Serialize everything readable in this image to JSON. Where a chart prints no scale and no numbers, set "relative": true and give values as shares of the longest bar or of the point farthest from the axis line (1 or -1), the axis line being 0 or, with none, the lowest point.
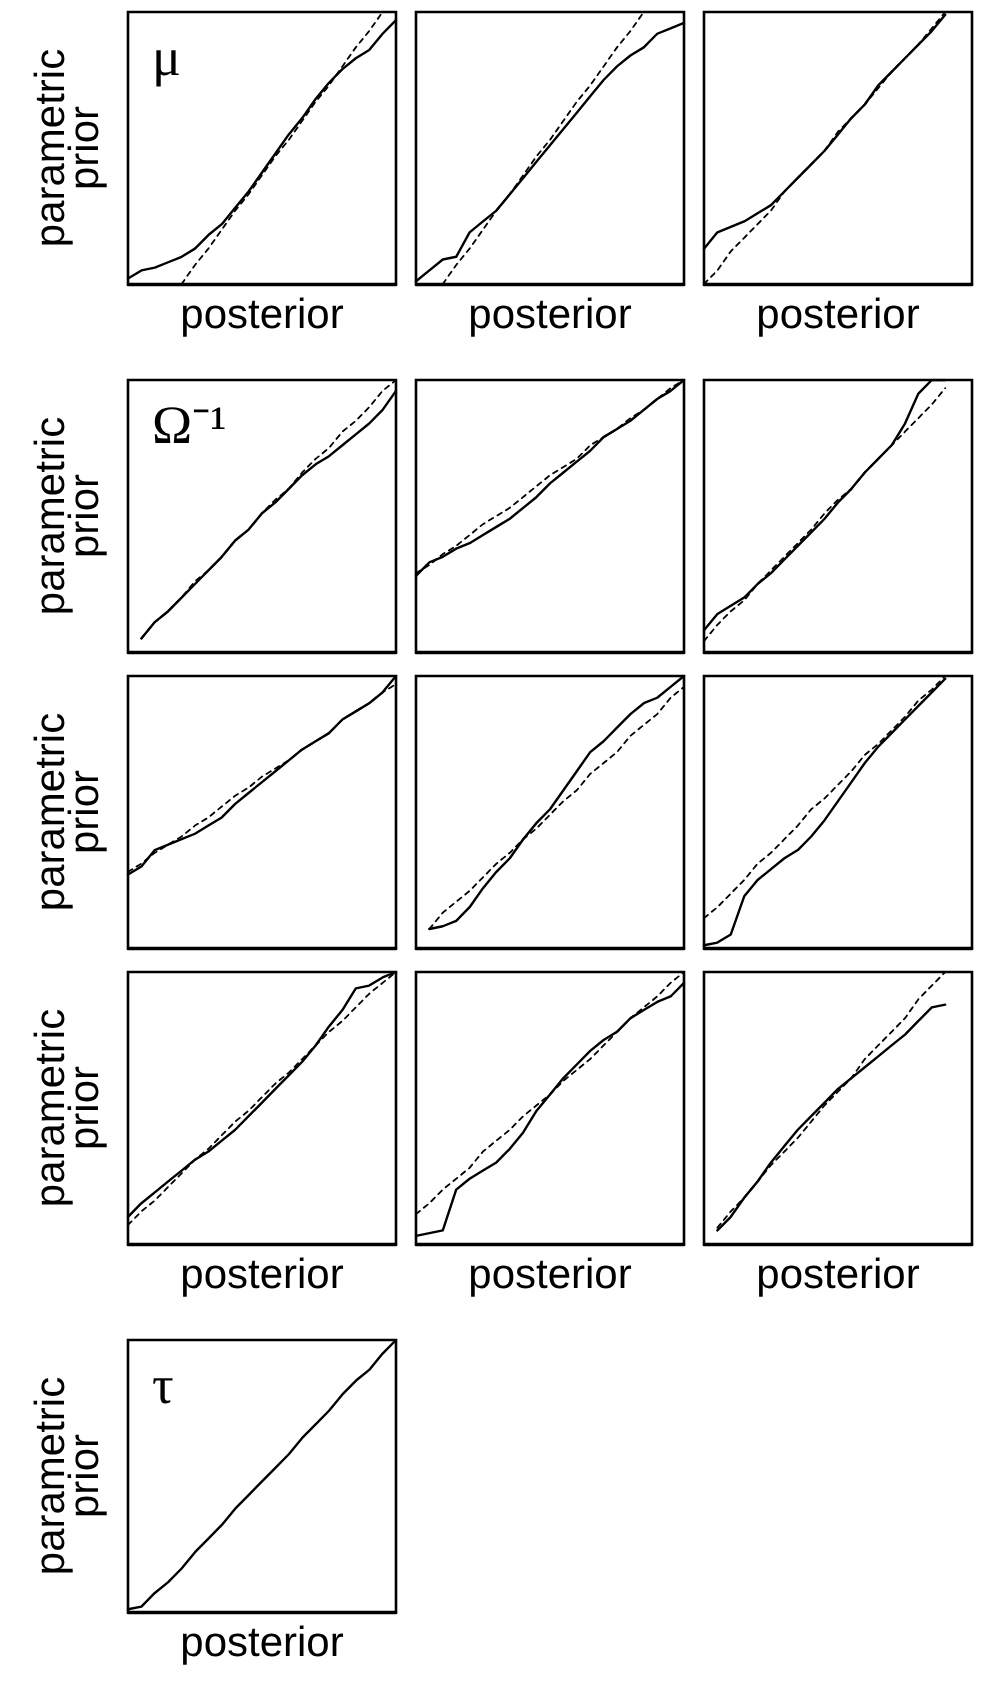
{
  "chart_data": [
    {
      "type": "line",
      "relative": true,
      "title": "μ",
      "xlabel": "posterior",
      "ylabel": "parametric prior",
      "tick_labels": false,
      "categories": [
        null,
        null,
        null,
        null,
        null,
        null,
        null,
        null,
        null,
        null,
        null,
        null,
        null,
        null,
        null,
        null,
        null,
        null,
        null,
        null,
        null
      ],
      "series": [
        {
          "color": "#000000",
          "line_style": "solid",
          "values": [
            0.02,
            0.05,
            0.06,
            0.08,
            0.1,
            0.13,
            0.18,
            0.22,
            0.28,
            0.34,
            0.41,
            0.48,
            0.55,
            0.61,
            0.68,
            0.74,
            0.79,
            0.83,
            0.86,
            0.92,
            0.97
          ]
        },
        {
          "color": "#000000",
          "line_style": "dashed",
          "values": [
            null,
            null,
            null,
            null,
            0,
            0.07,
            0.13,
            0.2,
            0.27,
            0.33,
            0.4,
            0.47,
            0.53,
            0.6,
            0.67,
            0.73,
            0.8,
            0.87,
            0.93,
            1,
            null
          ]
        }
      ]
    },
    {
      "type": "line",
      "relative": true,
      "xlabel": "posterior",
      "tick_labels": false,
      "categories": [
        null,
        null,
        null,
        null,
        null,
        null,
        null,
        null,
        null,
        null,
        null,
        null,
        null,
        null,
        null,
        null,
        null,
        null,
        null,
        null,
        null
      ],
      "series": [
        {
          "color": "#000000",
          "line_style": "solid",
          "values": [
            0.01,
            0.05,
            0.09,
            0.1,
            0.19,
            0.23,
            0.27,
            0.33,
            0.39,
            0.45,
            0.51,
            0.57,
            0.63,
            0.69,
            0.75,
            0.8,
            0.84,
            0.87,
            0.92,
            0.94,
            0.96
          ]
        },
        {
          "color": "#000000",
          "line_style": "dashed",
          "values": [
            null,
            null,
            0,
            0.07,
            0.13,
            0.2,
            0.27,
            0.33,
            0.4,
            0.47,
            0.53,
            0.6,
            0.67,
            0.73,
            0.8,
            0.87,
            0.93,
            1,
            null,
            null,
            null
          ]
        }
      ]
    },
    {
      "type": "line",
      "relative": true,
      "xlabel": "posterior",
      "tick_labels": false,
      "categories": [
        null,
        null,
        null,
        null,
        null,
        null,
        null,
        null,
        null,
        null,
        null,
        null,
        null,
        null,
        null,
        null,
        null,
        null,
        null,
        null,
        null
      ],
      "series": [
        {
          "color": "#000000",
          "line_style": "solid",
          "values": [
            0.13,
            0.19,
            0.21,
            0.23,
            0.26,
            0.29,
            0.34,
            0.39,
            0.44,
            0.49,
            0.55,
            0.61,
            0.66,
            0.73,
            0.78,
            0.83,
            0.88,
            0.93,
            0.99,
            null,
            null
          ]
        },
        {
          "color": "#000000",
          "line_style": "dashed",
          "values": [
            0,
            0.05,
            0.12,
            0.17,
            0.22,
            0.27,
            0.34,
            0.39,
            0.44,
            0.49,
            0.56,
            0.61,
            0.66,
            0.72,
            0.78,
            0.83,
            0.88,
            0.94,
            1,
            null,
            null
          ]
        }
      ]
    },
    {
      "type": "line",
      "relative": true,
      "title": "Ω⁻¹",
      "ylabel": "parametric prior",
      "tick_labels": false,
      "categories": [
        null,
        null,
        null,
        null,
        null,
        null,
        null,
        null,
        null,
        null,
        null,
        null,
        null,
        null,
        null,
        null,
        null,
        null,
        null,
        null,
        null
      ],
      "series": [
        {
          "color": "#000000",
          "line_style": "solid",
          "values": [
            null,
            0.05,
            0.11,
            0.15,
            0.2,
            0.25,
            0.3,
            0.35,
            0.41,
            0.45,
            0.51,
            0.55,
            0.6,
            0.65,
            0.69,
            0.72,
            0.76,
            0.8,
            0.84,
            0.89,
            0.96
          ]
        },
        {
          "color": "#000000",
          "line_style": "dashed",
          "values": [
            null,
            0.05,
            0.11,
            0.15,
            0.2,
            0.26,
            0.3,
            0.35,
            0.41,
            0.45,
            0.51,
            0.56,
            0.6,
            0.66,
            0.71,
            0.75,
            0.81,
            0.85,
            0.9,
            0.96,
            1
          ]
        }
      ]
    },
    {
      "type": "line",
      "relative": true,
      "tick_labels": false,
      "categories": [
        null,
        null,
        null,
        null,
        null,
        null,
        null,
        null,
        null,
        null,
        null,
        null,
        null,
        null,
        null,
        null,
        null,
        null,
        null,
        null,
        null
      ],
      "series": [
        {
          "color": "#000000",
          "line_style": "solid",
          "values": [
            0.28,
            0.33,
            0.35,
            0.38,
            0.4,
            0.43,
            0.46,
            0.49,
            0.53,
            0.57,
            0.62,
            0.66,
            0.7,
            0.74,
            0.79,
            0.82,
            0.85,
            0.89,
            0.93,
            0.96,
            1
          ]
        },
        {
          "color": "#000000",
          "line_style": "dashed",
          "values": [
            0.29,
            0.32,
            0.36,
            0.39,
            0.43,
            0.47,
            0.5,
            0.53,
            0.57,
            0.61,
            0.65,
            0.68,
            0.71,
            0.76,
            0.79,
            0.82,
            0.86,
            0.89,
            0.93,
            0.97,
            1
          ]
        }
      ]
    },
    {
      "type": "line",
      "relative": true,
      "tick_labels": false,
      "categories": [
        null,
        null,
        null,
        null,
        null,
        null,
        null,
        null,
        null,
        null,
        null,
        null,
        null,
        null,
        null,
        null,
        null,
        null,
        null,
        null,
        null
      ],
      "series": [
        {
          "color": "#000000",
          "line_style": "solid",
          "values": [
            0.08,
            0.14,
            0.17,
            0.2,
            0.25,
            0.29,
            0.34,
            0.39,
            0.44,
            0.49,
            0.55,
            0.6,
            0.66,
            0.71,
            0.76,
            0.84,
            0.95,
            1,
            1,
            null,
            null
          ]
        },
        {
          "color": "#000000",
          "line_style": "dashed",
          "values": [
            0.04,
            0.1,
            0.15,
            0.19,
            0.25,
            0.3,
            0.35,
            0.4,
            0.45,
            0.51,
            0.56,
            0.6,
            0.66,
            0.71,
            0.76,
            0.81,
            0.86,
            0.91,
            0.97,
            null,
            null
          ]
        }
      ]
    },
    {
      "type": "line",
      "relative": true,
      "ylabel": "parametric prior",
      "tick_labels": false,
      "categories": [
        null,
        null,
        null,
        null,
        null,
        null,
        null,
        null,
        null,
        null,
        null,
        null,
        null,
        null,
        null,
        null,
        null,
        null,
        null,
        null,
        null
      ],
      "series": [
        {
          "color": "#000000",
          "line_style": "solid",
          "values": [
            0.27,
            0.3,
            0.36,
            0.38,
            0.4,
            0.42,
            0.45,
            0.48,
            0.53,
            0.57,
            0.61,
            0.65,
            0.69,
            0.73,
            0.76,
            0.79,
            0.84,
            0.87,
            0.9,
            0.94,
            1
          ]
        },
        {
          "color": "#000000",
          "line_style": "dashed",
          "values": [
            0.28,
            0.31,
            0.35,
            0.38,
            0.41,
            0.45,
            0.48,
            0.52,
            0.56,
            0.59,
            0.63,
            0.66,
            0.69,
            0.73,
            0.76,
            0.79,
            0.84,
            0.87,
            0.9,
            0.94,
            0.97
          ]
        }
      ]
    },
    {
      "type": "line",
      "relative": true,
      "tick_labels": false,
      "categories": [
        null,
        null,
        null,
        null,
        null,
        null,
        null,
        null,
        null,
        null,
        null,
        null,
        null,
        null,
        null,
        null,
        null,
        null,
        null,
        null,
        null
      ],
      "series": [
        {
          "color": "#000000",
          "line_style": "solid",
          "values": [
            null,
            0.07,
            0.08,
            0.1,
            0.15,
            0.22,
            0.28,
            0.33,
            0.4,
            0.46,
            0.51,
            0.58,
            0.65,
            0.72,
            0.76,
            0.81,
            0.86,
            0.9,
            0.92,
            0.96,
            1
          ]
        },
        {
          "color": "#000000",
          "line_style": "dashed",
          "values": [
            null,
            0.07,
            0.13,
            0.17,
            0.21,
            0.26,
            0.31,
            0.35,
            0.4,
            0.44,
            0.49,
            0.54,
            0.58,
            0.64,
            0.68,
            0.72,
            0.78,
            0.82,
            0.86,
            0.92,
            0.96
          ]
        }
      ]
    },
    {
      "type": "line",
      "relative": true,
      "tick_labels": false,
      "categories": [
        null,
        null,
        null,
        null,
        null,
        null,
        null,
        null,
        null,
        null,
        null,
        null,
        null,
        null,
        null,
        null,
        null,
        null,
        null,
        null,
        null
      ],
      "series": [
        {
          "color": "#000000",
          "line_style": "solid",
          "values": [
            0.01,
            0.02,
            0.05,
            0.19,
            0.25,
            0.29,
            0.33,
            0.36,
            0.41,
            0.47,
            0.54,
            0.61,
            0.68,
            0.74,
            0.79,
            0.84,
            0.89,
            0.94,
            0.99,
            null,
            null
          ]
        },
        {
          "color": "#000000",
          "line_style": "dashed",
          "values": [
            0.11,
            0.15,
            0.2,
            0.25,
            0.31,
            0.35,
            0.4,
            0.45,
            0.51,
            0.55,
            0.6,
            0.65,
            0.71,
            0.75,
            0.8,
            0.85,
            0.91,
            0.95,
            1,
            null,
            null
          ]
        }
      ]
    },
    {
      "type": "line",
      "relative": true,
      "xlabel": "posterior",
      "ylabel": "parametric prior",
      "tick_labels": false,
      "categories": [
        null,
        null,
        null,
        null,
        null,
        null,
        null,
        null,
        null,
        null,
        null,
        null,
        null,
        null,
        null,
        null,
        null,
        null,
        null,
        null,
        null
      ],
      "series": [
        {
          "color": "#000000",
          "line_style": "solid",
          "values": [
            0.1,
            0.15,
            0.19,
            0.23,
            0.27,
            0.31,
            0.34,
            0.38,
            0.42,
            0.47,
            0.52,
            0.57,
            0.62,
            0.67,
            0.73,
            0.8,
            0.86,
            0.94,
            0.95,
            0.98,
            1
          ]
        },
        {
          "color": "#000000",
          "line_style": "dashed",
          "values": [
            0.07,
            0.12,
            0.16,
            0.21,
            0.26,
            0.31,
            0.35,
            0.4,
            0.45,
            0.49,
            0.54,
            0.59,
            0.63,
            0.68,
            0.73,
            0.78,
            0.82,
            0.87,
            0.92,
            0.96,
            1
          ]
        }
      ]
    },
    {
      "type": "line",
      "relative": true,
      "xlabel": "posterior",
      "tick_labels": false,
      "categories": [
        null,
        null,
        null,
        null,
        null,
        null,
        null,
        null,
        null,
        null,
        null,
        null,
        null,
        null,
        null,
        null,
        null,
        null,
        null,
        null,
        null
      ],
      "series": [
        {
          "color": "#000000",
          "line_style": "solid",
          "values": [
            0.03,
            0.04,
            0.05,
            0.2,
            0.24,
            0.27,
            0.3,
            0.35,
            0.41,
            0.49,
            0.55,
            0.61,
            0.66,
            0.71,
            0.75,
            0.78,
            0.83,
            0.86,
            0.89,
            0.91,
            0.96
          ]
        },
        {
          "color": "#000000",
          "line_style": "dashed",
          "values": [
            0.11,
            0.15,
            0.2,
            0.24,
            0.28,
            0.34,
            0.38,
            0.42,
            0.47,
            0.51,
            0.55,
            0.6,
            0.64,
            0.68,
            0.73,
            0.78,
            0.83,
            0.87,
            0.91,
            0.96,
            1
          ]
        }
      ]
    },
    {
      "type": "line",
      "relative": true,
      "xlabel": "posterior",
      "tick_labels": false,
      "categories": [
        null,
        null,
        null,
        null,
        null,
        null,
        null,
        null,
        null,
        null,
        null,
        null,
        null,
        null,
        null,
        null,
        null,
        null,
        null,
        null,
        null
      ],
      "series": [
        {
          "color": "#000000",
          "line_style": "solid",
          "values": [
            null,
            0.05,
            0.1,
            0.17,
            0.23,
            0.3,
            0.36,
            0.42,
            0.47,
            0.52,
            0.57,
            0.61,
            0.65,
            0.69,
            0.73,
            0.77,
            0.82,
            0.87,
            0.88,
            null,
            null
          ]
        },
        {
          "color": "#000000",
          "line_style": "dashed",
          "values": [
            null,
            0.06,
            0.12,
            0.17,
            0.23,
            0.29,
            0.34,
            0.39,
            0.45,
            0.51,
            0.56,
            0.61,
            0.68,
            0.73,
            0.78,
            0.83,
            0.9,
            0.95,
            1,
            null,
            null
          ]
        }
      ]
    },
    {
      "type": "line",
      "relative": true,
      "title": "τ",
      "xlabel": "posterior",
      "ylabel": "parametric prior",
      "tick_labels": false,
      "categories": [
        null,
        null,
        null,
        null,
        null,
        null,
        null,
        null,
        null,
        null,
        null,
        null,
        null,
        null,
        null,
        null,
        null,
        null,
        null,
        null,
        null
      ],
      "series": [
        {
          "color": "#000000",
          "line_style": "solid",
          "values": [
            0.01,
            0.02,
            0.07,
            0.11,
            0.16,
            0.22,
            0.27,
            0.32,
            0.38,
            0.43,
            0.48,
            0.53,
            0.58,
            0.64,
            0.69,
            0.74,
            0.8,
            0.85,
            0.89,
            0.95,
            1
          ]
        }
      ]
    }
  ]
}
